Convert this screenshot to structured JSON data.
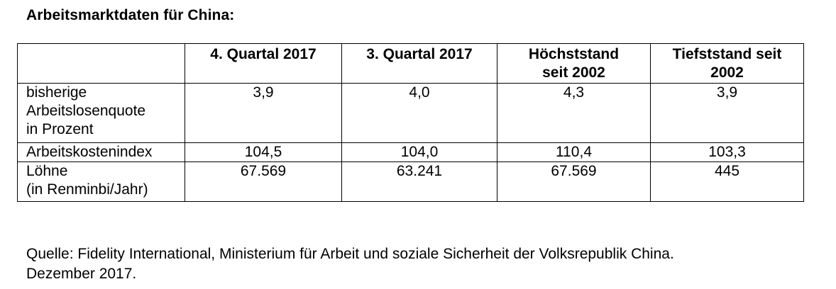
{
  "title": "Arbeitsmarktdaten für China:",
  "table": {
    "headers": [
      "",
      "4. Quartal 2017",
      "3. Quartal 2017",
      "Höchststand\nseit 2002",
      "Tiefststand seit\n2002"
    ],
    "rows": [
      {
        "label": "bisherige\nArbeitslosenquote\nin Prozent",
        "values": [
          "3,9",
          "4,0",
          "4,3",
          "3,9"
        ]
      },
      {
        "label": "Arbeitskostenindex",
        "values": [
          "104,5",
          "104,0",
          "110,4",
          "103,3"
        ]
      },
      {
        "label": "Löhne\n(in Renminbi/Jahr)",
        "values": [
          "67.569",
          "63.241",
          "67.569",
          "445"
        ]
      }
    ]
  },
  "source": "Quelle: Fidelity International, Ministerium für Arbeit und soziale Sicherheit der Volksrepublik China.\nDezember 2017."
}
